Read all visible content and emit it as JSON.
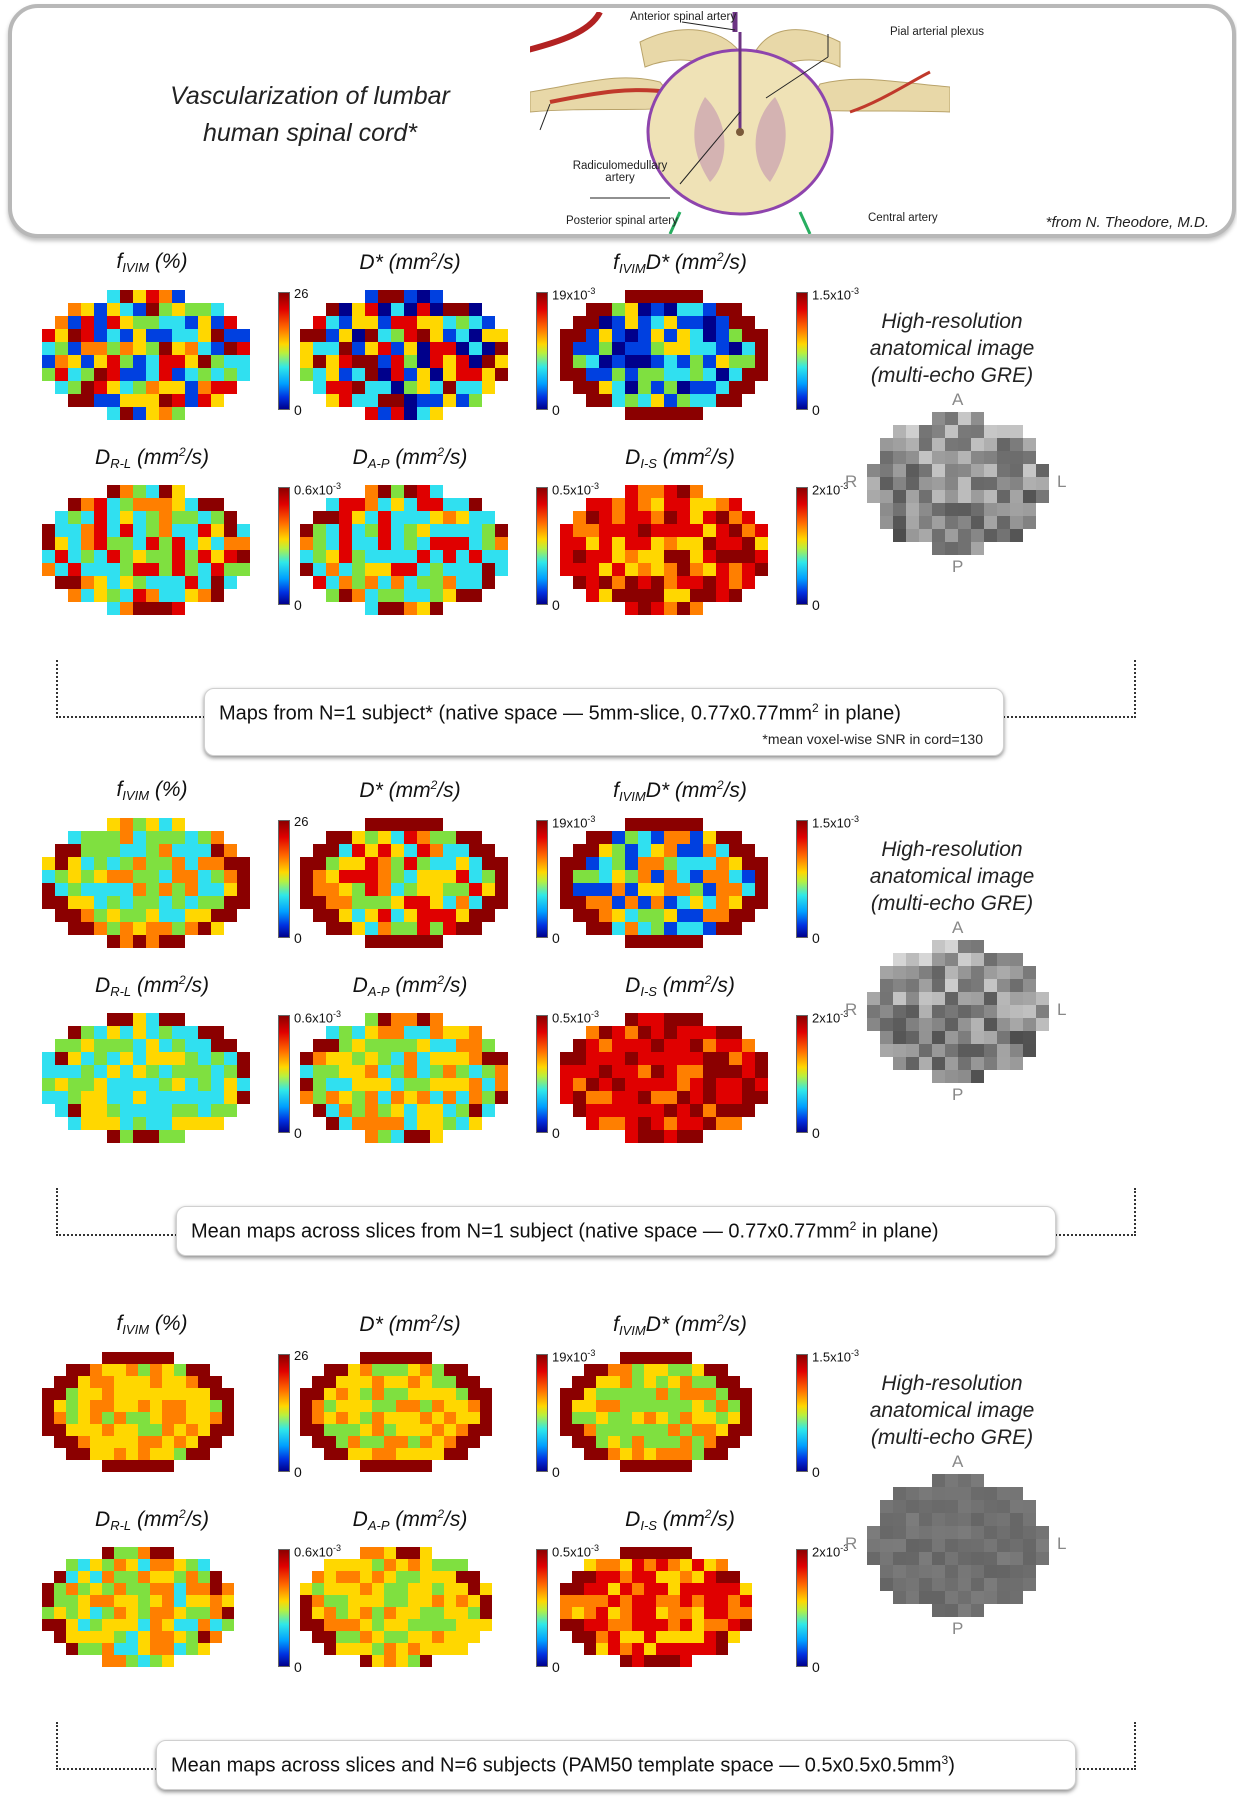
{
  "header": {
    "title_line1": "Vascularization of lumbar",
    "title_line2": "human spinal cord*",
    "annotations": {
      "anterior_spinal_artery": "Anterior spinal artery",
      "pial_arterial_plexus": "Pial arterial plexus",
      "radiculomedullary_line1": "Radiculomedullary",
      "radiculomedullary_line2": "artery",
      "posterior_spinal_artery": "Posterior spinal artery",
      "central_artery": "Central artery"
    },
    "credit": "*from N. Theodore, M.D."
  },
  "map_labels": {
    "fivim": {
      "main": "f",
      "sub": "IVIM",
      "unit": " (%)"
    },
    "dstar": {
      "main": "D* (mm",
      "sup": "2",
      "tail": "/s)"
    },
    "fivimdstar": {
      "main": "f",
      "sub": "IVIM",
      "mid": "D* (mm",
      "sup": "2",
      "tail": "/s)"
    },
    "drl": {
      "main": "D",
      "sub": "R-L",
      "mid": " (mm",
      "sup": "2",
      "tail": "/s)"
    },
    "dap": {
      "main": "D",
      "sub": "A-P",
      "mid": " (mm",
      "sup": "2",
      "tail": "/s)"
    },
    "dis": {
      "main": "D",
      "sub": "I-S",
      "mid": " (mm",
      "sup": "2",
      "tail": "/s)"
    }
  },
  "colorbars": {
    "fivim": {
      "max": "26",
      "min": "0"
    },
    "dstar": {
      "max": "19x10",
      "exp": "-3",
      "min": "0"
    },
    "fivimdstar": {
      "max": "1.5x10",
      "exp": "-3",
      "min": "0"
    },
    "drl": {
      "max": "0.6x10",
      "exp": "-3",
      "min": "0"
    },
    "dap": {
      "max": "0.5x10",
      "exp": "-3",
      "min": "0"
    },
    "dis": {
      "max": "2x10",
      "exp": "-3",
      "min": "0"
    }
  },
  "anatomical": {
    "line1": "High-resolution",
    "line2": "anatomical image",
    "line3": "(multi-echo GRE)",
    "a": "A",
    "p": "P",
    "r": "R",
    "l": "L"
  },
  "sections": [
    {
      "caption": "Maps from N=1 subject* (native space — 5mm-slice, 0.77x0.77mm",
      "caption_sup": "2",
      "caption_tail": " in plane)",
      "note": "*mean voxel-wise SNR in cord=130"
    },
    {
      "caption": "Mean maps across slices from N=1 subject (native space — 0.77x0.77mm",
      "caption_sup": "2",
      "caption_tail": " in plane)"
    },
    {
      "caption": "Mean maps across slices and N=6 subjects (PAM50 template space — 0.5x0.5x0.5mm",
      "caption_sup": "3",
      "caption_tail": ")"
    }
  ],
  "colors": {
    "dark_red": "#8b0000",
    "red": "#e00000",
    "orange": "#ff7f00",
    "yellow": "#ffd700",
    "green": "#7fe040",
    "cyan": "#30e0f0",
    "blue": "#0040e0",
    "navy": "#00008b"
  }
}
